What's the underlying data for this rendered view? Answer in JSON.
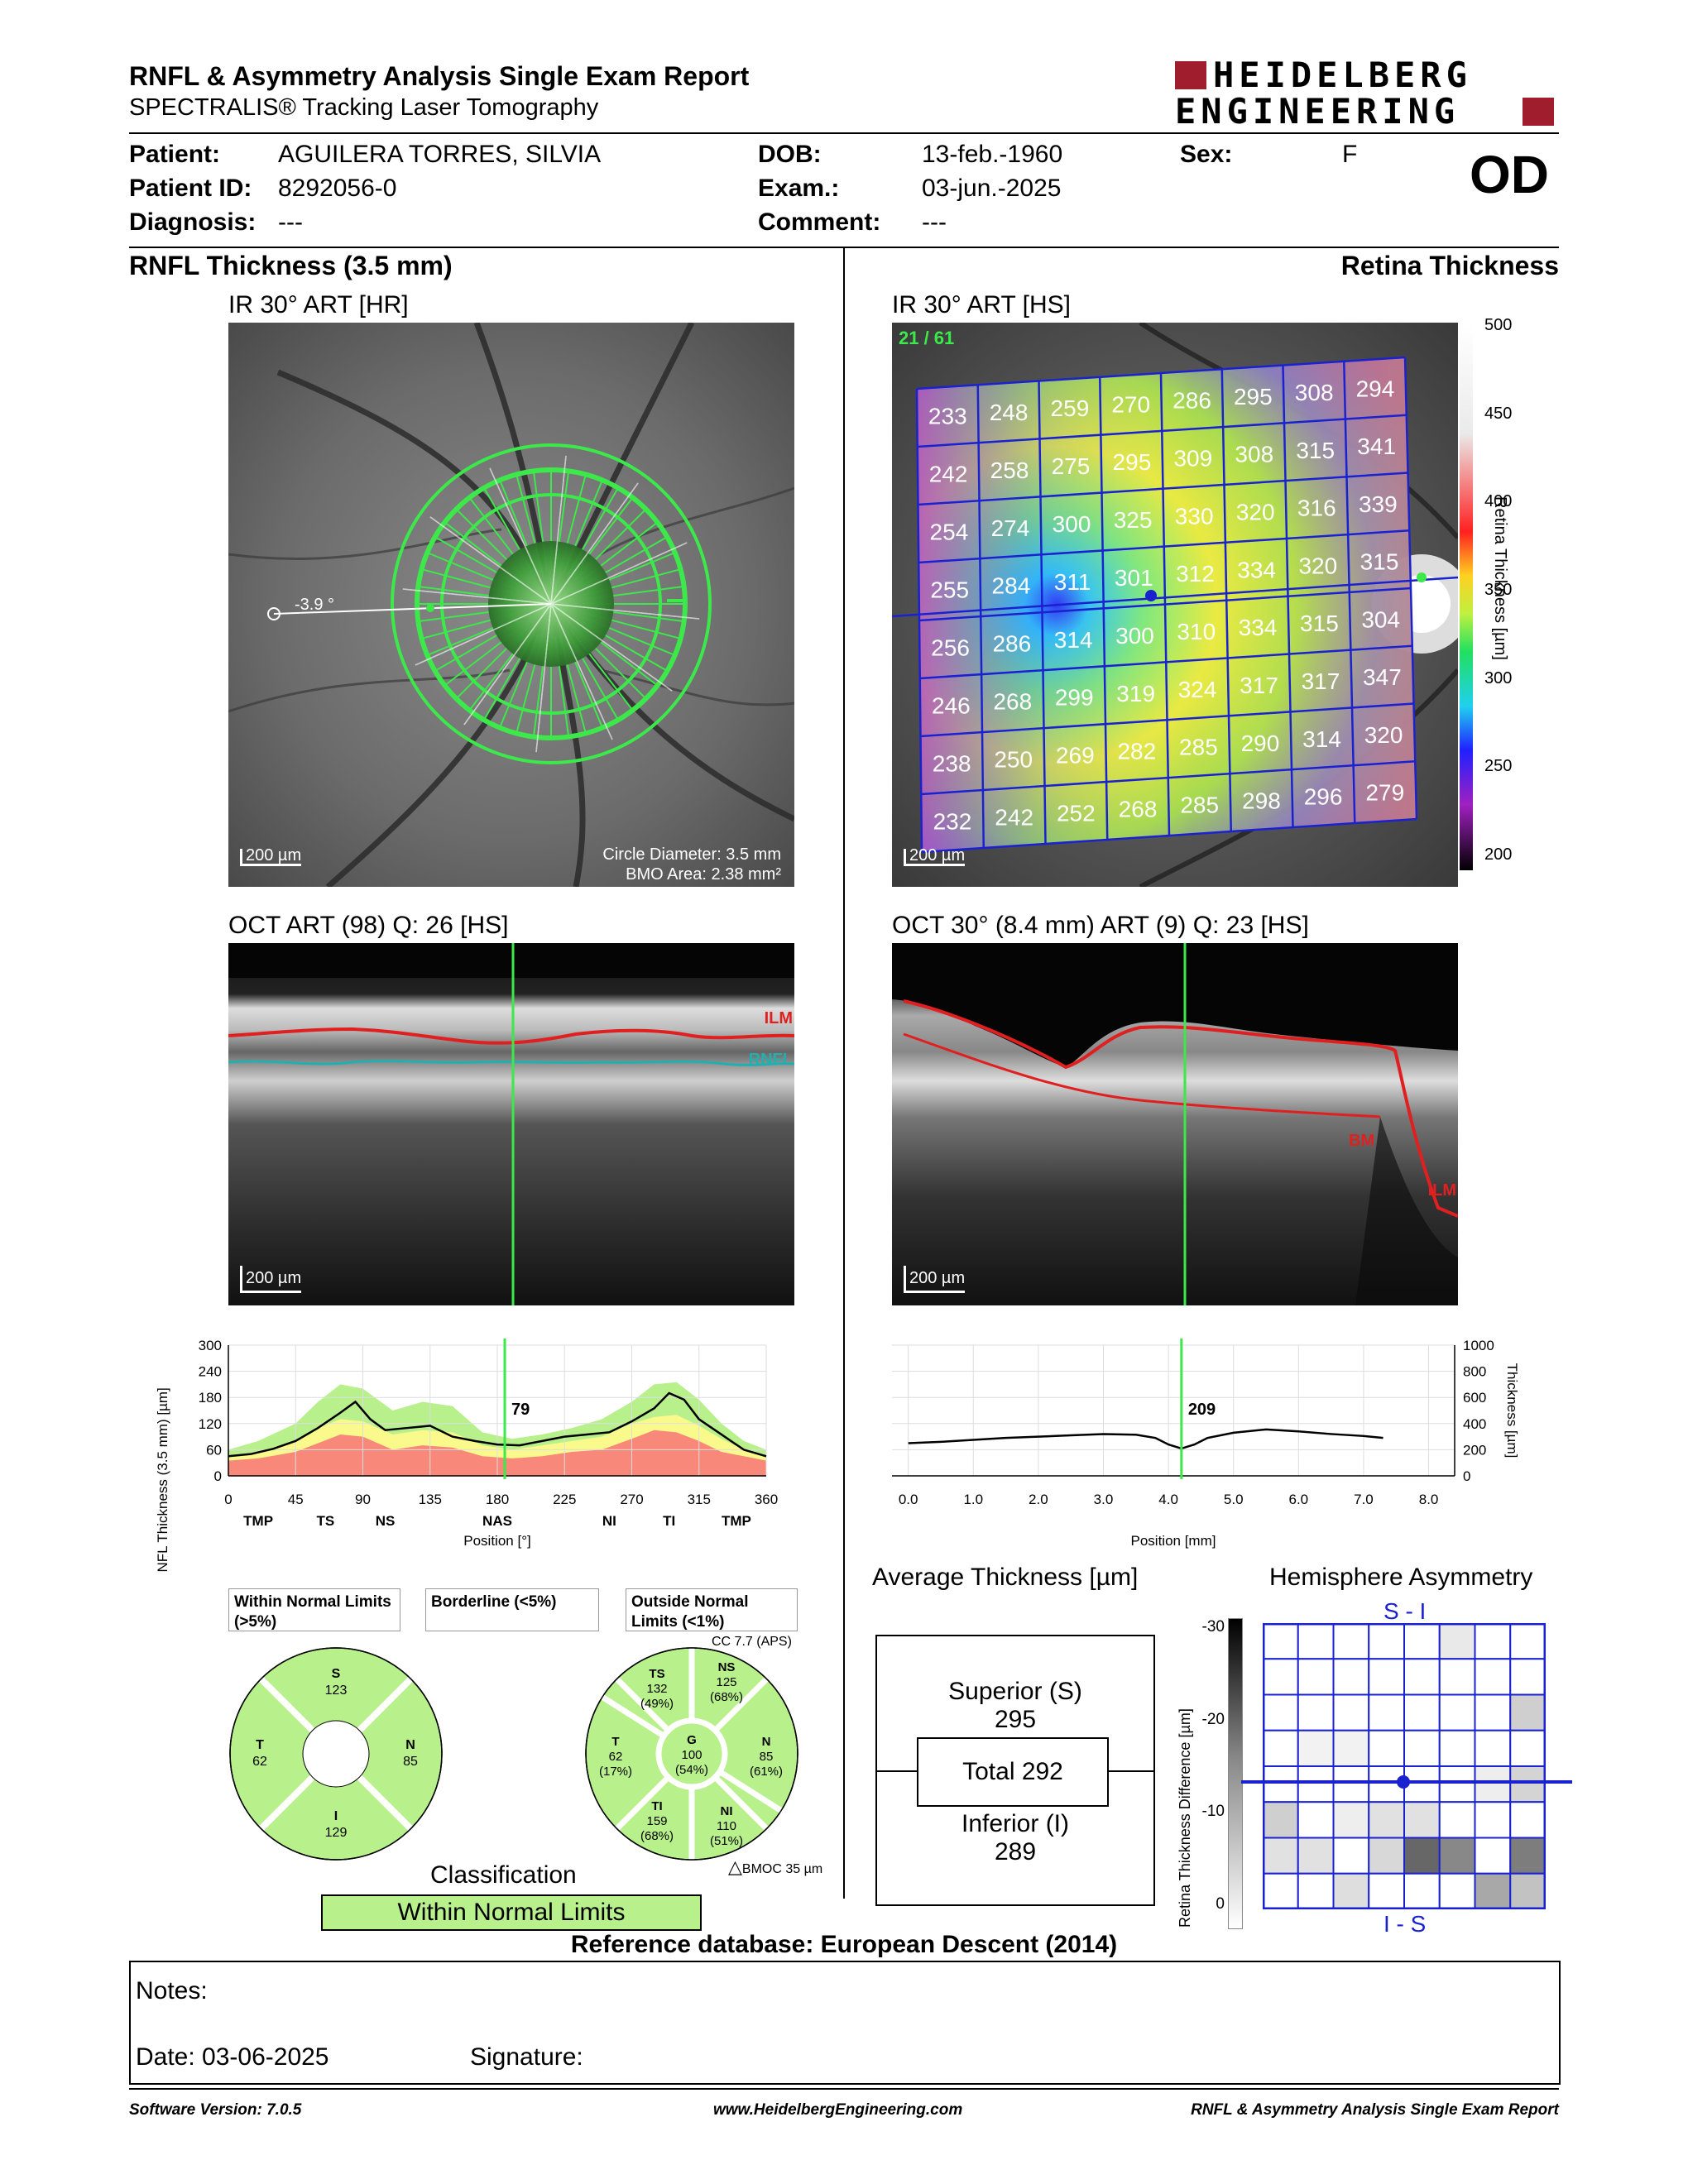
{
  "header": {
    "title": "RNFL & Asymmetry Analysis Single Exam Report",
    "subtitle": "SPECTRALIS® Tracking Laser Tomography",
    "logo_line1": "HEIDELBERG",
    "logo_line2": "ENGINEERING",
    "eye": "OD"
  },
  "patient": {
    "patient_label": "Patient:",
    "patient_value": "AGUILERA TORRES, SILVIA",
    "id_label": "Patient ID:",
    "id_value": "8292056-0",
    "diagnosis_label": "Diagnosis:",
    "diagnosis_value": "---",
    "dob_label": "DOB:",
    "dob_value": "13-feb.-1960",
    "exam_label": "Exam.:",
    "exam_value": "03-jun.-2025",
    "comment_label": "Comment:",
    "comment_value": "---",
    "sex_label": "Sex:",
    "sex_value": "F"
  },
  "left": {
    "section_title": "RNFL Thickness (3.5 mm)",
    "ir_title": "IR 30° ART [HR]",
    "ir_angle": "-3.9 °",
    "ir_scale": "200 µm",
    "ir_circle_diameter": "Circle Diameter: 3.5 mm",
    "ir_bmo_area": "BMO Area: 2.38 mm²",
    "oct_title": "OCT ART (98) Q: 26 [HS]",
    "oct_scale": "200 µm",
    "oct_ilm": "ILM",
    "oct_rnfl": "RNFL"
  },
  "right": {
    "section_title": "Retina Thickness",
    "ir_title": "IR 30° ART [HS]",
    "ir_count": "21 / 61",
    "ir_scale": "200 µm",
    "colorbar_ticks": [
      "500",
      "450",
      "400",
      "350",
      "300",
      "250",
      "200"
    ],
    "colorbar_label": "Retina Thickness [µm]",
    "grid": [
      [
        "233",
        "248",
        "259",
        "270",
        "286",
        "295",
        "308",
        "294"
      ],
      [
        "242",
        "258",
        "275",
        "295",
        "309",
        "308",
        "315",
        "341"
      ],
      [
        "254",
        "274",
        "300",
        "325",
        "330",
        "320",
        "316",
        "339"
      ],
      [
        "255",
        "284",
        "311",
        "301",
        "312",
        "334",
        "320",
        "315"
      ],
      [
        "256",
        "286",
        "314",
        "300",
        "310",
        "334",
        "315",
        "304"
      ],
      [
        "246",
        "268",
        "299",
        "319",
        "324",
        "317",
        "317",
        "347"
      ],
      [
        "238",
        "250",
        "269",
        "282",
        "285",
        "290",
        "314",
        "320"
      ],
      [
        "232",
        "242",
        "252",
        "268",
        "285",
        "298",
        "296",
        "279"
      ]
    ],
    "oct_title": "OCT 30° (8.4 mm) ART (9) Q: 23 [HS]",
    "oct_scale": "200 µm",
    "oct_ilm": "ILM",
    "oct_bm": "BM"
  },
  "chart_data": [
    {
      "type": "line",
      "ylabel": "RNFL Thickness (3.5 mm) [µm]",
      "xlabel": "Position [°]",
      "x_ticks": [
        "0",
        "45",
        "90",
        "135",
        "180",
        "225",
        "270",
        "315",
        "360"
      ],
      "y_ticks": [
        "300",
        "240",
        "180",
        "120",
        "60",
        "0"
      ],
      "xlim": [
        0,
        360
      ],
      "ylim": [
        0,
        300
      ],
      "sector_labels": [
        {
          "label": "TMP",
          "x": 20
        },
        {
          "label": "TS",
          "x": 65
        },
        {
          "label": "NS",
          "x": 105
        },
        {
          "label": "NAS",
          "x": 180
        },
        {
          "label": "NI",
          "x": 255
        },
        {
          "label": "TI",
          "x": 295
        },
        {
          "label": "TMP",
          "x": 340
        }
      ],
      "cursor": {
        "x": 185,
        "label": "79"
      },
      "measured": {
        "x": [
          0,
          15,
          30,
          45,
          60,
          75,
          85,
          95,
          105,
          120,
          135,
          150,
          165,
          180,
          195,
          210,
          225,
          240,
          255,
          270,
          285,
          295,
          305,
          315,
          330,
          345,
          360
        ],
        "y": [
          45,
          50,
          62,
          80,
          110,
          145,
          170,
          130,
          105,
          110,
          115,
          90,
          80,
          72,
          70,
          80,
          90,
          95,
          100,
          125,
          155,
          190,
          175,
          130,
          95,
          60,
          45
        ]
      },
      "normal_upper": {
        "x": [
          0,
          20,
          45,
          60,
          75,
          90,
          110,
          130,
          150,
          170,
          190,
          210,
          230,
          250,
          270,
          285,
          300,
          315,
          330,
          345,
          360
        ],
        "y": [
          60,
          80,
          120,
          170,
          210,
          200,
          150,
          170,
          160,
          100,
          85,
          95,
          110,
          130,
          170,
          210,
          215,
          175,
          120,
          80,
          60
        ]
      },
      "border_upper": {
        "x": [
          0,
          20,
          45,
          60,
          75,
          90,
          110,
          130,
          150,
          170,
          190,
          210,
          230,
          250,
          270,
          285,
          300,
          315,
          330,
          345,
          360
        ],
        "y": [
          45,
          55,
          80,
          110,
          130,
          125,
          95,
          105,
          100,
          70,
          60,
          70,
          80,
          90,
          120,
          135,
          140,
          115,
          85,
          60,
          45
        ]
      },
      "outside_upper": {
        "x": [
          0,
          20,
          45,
          60,
          75,
          90,
          110,
          130,
          150,
          170,
          190,
          210,
          230,
          250,
          270,
          285,
          300,
          315,
          330,
          345,
          360
        ],
        "y": [
          35,
          40,
          55,
          75,
          95,
          90,
          60,
          70,
          65,
          45,
          40,
          45,
          55,
          60,
          85,
          105,
          100,
          80,
          55,
          45,
          35
        ]
      }
    },
    {
      "type": "line",
      "ylabel": "Thickness [µm]",
      "xlabel": "Position [mm]",
      "x_ticks": [
        "0.0",
        "1.0",
        "2.0",
        "3.0",
        "4.0",
        "5.0",
        "6.0",
        "7.0",
        "8.0"
      ],
      "y_ticks": [
        "1000",
        "800",
        "600",
        "400",
        "200",
        "0"
      ],
      "xlim": [
        -0.25,
        8.4
      ],
      "ylim": [
        0,
        1000
      ],
      "cursor": {
        "x": 4.2,
        "label": "209"
      },
      "measured": {
        "x": [
          0,
          0.5,
          1,
          1.5,
          2,
          2.5,
          3,
          3.5,
          3.8,
          4.0,
          4.2,
          4.4,
          4.6,
          5.0,
          5.5,
          6.0,
          6.5,
          7.0,
          7.3
        ],
        "y": [
          250,
          260,
          275,
          290,
          300,
          310,
          320,
          315,
          290,
          240,
          209,
          240,
          290,
          330,
          355,
          340,
          320,
          305,
          290
        ]
      }
    }
  ],
  "legend": {
    "within": "Within Normal Limits (>5%)",
    "borderline": "Borderline (<5%)",
    "outside": "Outside Normal Limits (<1%)",
    "within_color": "#b8f08c",
    "borderline_color": "#fafa8c",
    "outside_color": "#f8887a"
  },
  "pie_left": {
    "S": {
      "label": "S",
      "value": "123"
    },
    "T": {
      "label": "T",
      "value": "62"
    },
    "N": {
      "label": "N",
      "value": "85"
    },
    "I": {
      "label": "I",
      "value": "129"
    }
  },
  "pie_right": {
    "cc": "CC 7.7 (APS)",
    "TS": {
      "label": "TS",
      "value": "132",
      "pct": "(49%)"
    },
    "NS": {
      "label": "NS",
      "value": "125",
      "pct": "(68%)"
    },
    "T": {
      "label": "T",
      "value": "62",
      "pct": "(17%)"
    },
    "G": {
      "label": "G",
      "value": "100",
      "pct": "(54%)"
    },
    "N": {
      "label": "N",
      "value": "85",
      "pct": "(61%)"
    },
    "TI": {
      "label": "TI",
      "value": "159",
      "pct": "(68%)"
    },
    "NI": {
      "label": "NI",
      "value": "110",
      "pct": "(51%)"
    },
    "bmoc": "BMOC 35 µm"
  },
  "classification": {
    "title": "Classification",
    "value": "Within Normal Limits"
  },
  "average": {
    "title": "Average Thickness [µm]",
    "superior_label": "Superior (S)",
    "superior_value": "295",
    "total": "Total 292",
    "inferior_label": "Inferior (I)",
    "inferior_value": "289"
  },
  "asymmetry": {
    "title": "Hemisphere Asymmetry",
    "top_label": "S - I",
    "bottom_label": "I - S",
    "axis_label": "Retina Thickness Difference [µm]",
    "ticks": [
      "-30",
      "-20",
      "-10",
      "0"
    ],
    "upper_cells": [
      [
        0,
        0,
        0,
        0,
        0,
        10,
        0,
        0
      ],
      [
        0,
        0,
        0,
        0,
        0,
        0,
        0,
        0
      ],
      [
        0,
        0,
        0,
        0,
        0,
        0,
        0,
        22
      ],
      [
        0,
        6,
        6,
        0,
        0,
        0,
        0,
        0
      ]
    ],
    "lower_cells": [
      [
        0,
        0,
        0,
        0,
        0,
        0,
        8,
        20
      ],
      [
        22,
        0,
        8,
        14,
        14,
        0,
        0,
        0
      ],
      [
        14,
        14,
        0,
        18,
        70,
        55,
        0,
        60
      ],
      [
        0,
        0,
        15,
        0,
        0,
        0,
        40,
        28
      ]
    ]
  },
  "reference_db": "Reference database: European Descent (2014)",
  "notes": {
    "notes_label": "Notes:",
    "date_label": "Date: 03-06-2025",
    "signature_label": "Signature:"
  },
  "footer": {
    "software": "Software Version: 7.0.5",
    "website": "www.HeidelbergEngineering.com",
    "report": "RNFL & Asymmetry Analysis Single Exam Report"
  }
}
